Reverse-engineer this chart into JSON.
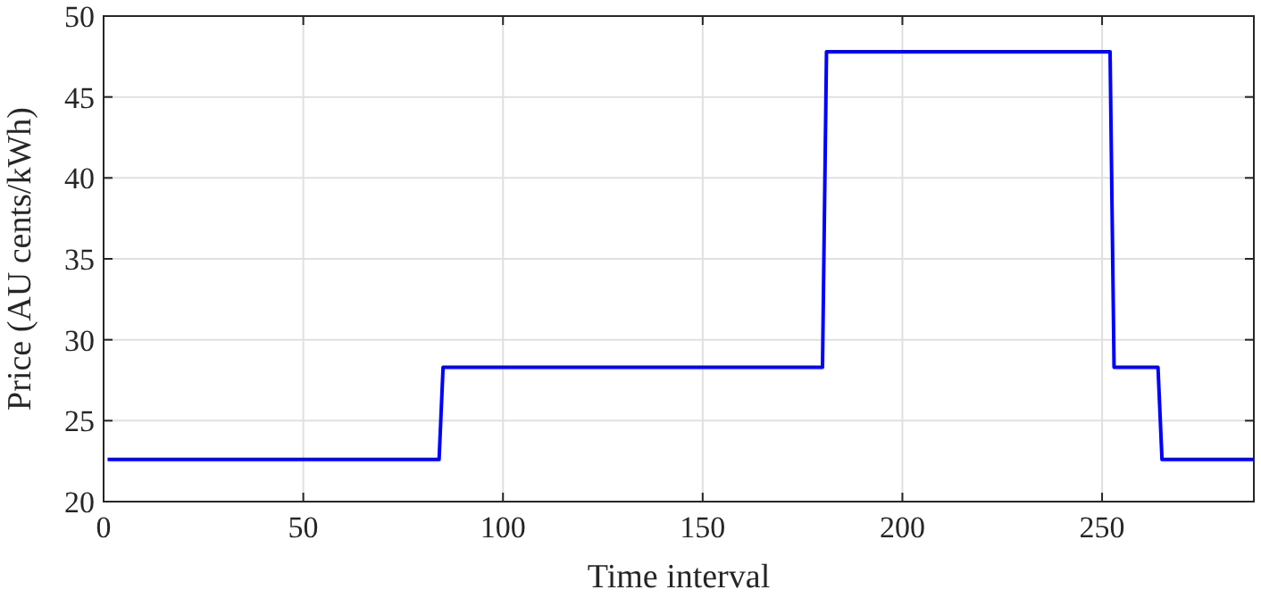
{
  "chart_data": {
    "type": "line",
    "xlabel": "Time interval",
    "ylabel": "Price (AU cents/kWh)",
    "series": [
      {
        "color": "#0000ff",
        "x": [
          1,
          84,
          85,
          180,
          181,
          252,
          253,
          264,
          265,
          288
        ],
        "values": [
          22.6,
          22.6,
          28.3,
          28.3,
          47.8,
          47.8,
          28.3,
          28.3,
          22.6,
          22.6
        ]
      }
    ],
    "xlim": [
      0,
      288
    ],
    "xticks": [
      0,
      50,
      100,
      150,
      200,
      250
    ],
    "ylim": [
      20,
      50
    ],
    "yticks": [
      20,
      25,
      30,
      35,
      40,
      45,
      50
    ],
    "grid": true,
    "marker": "none",
    "line_style": "solid"
  }
}
